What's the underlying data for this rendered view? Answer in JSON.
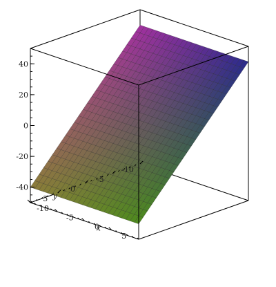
{
  "chart_data": {
    "type": "surface3d",
    "title": "",
    "xlabel": "x",
    "ylabel": "y",
    "zlabel": "",
    "x_range": [
      -10,
      10
    ],
    "y_range": [
      -10,
      10
    ],
    "z_range": [
      -50,
      50
    ],
    "x_ticks": [
      -10,
      -5,
      0,
      5
    ],
    "y_ticks": [
      -10,
      -5,
      0,
      5
    ],
    "z_ticks": [
      -40,
      -20,
      0,
      20,
      40
    ],
    "z_tick_labels": [
      "-40",
      "-20",
      "0",
      "20",
      "40"
    ],
    "x_tick_labels": [
      "-10",
      "-5",
      "0",
      "5"
    ],
    "y_tick_labels": [
      "-10",
      "-5",
      "0",
      "5"
    ],
    "surface": {
      "corners": [
        {
          "x": -10,
          "y": -10,
          "z": 40
        },
        {
          "x": 10,
          "y": -10,
          "z": 40
        },
        {
          "x": 10,
          "y": 10,
          "z": -40
        },
        {
          "x": -10,
          "y": 10,
          "z": -40
        }
      ],
      "grid_lines": 25,
      "corner_colors": [
        "#a2309f",
        "#2b2a8c",
        "#4e8c1c",
        "#8c7c3a"
      ]
    },
    "box": true,
    "grid": true
  }
}
